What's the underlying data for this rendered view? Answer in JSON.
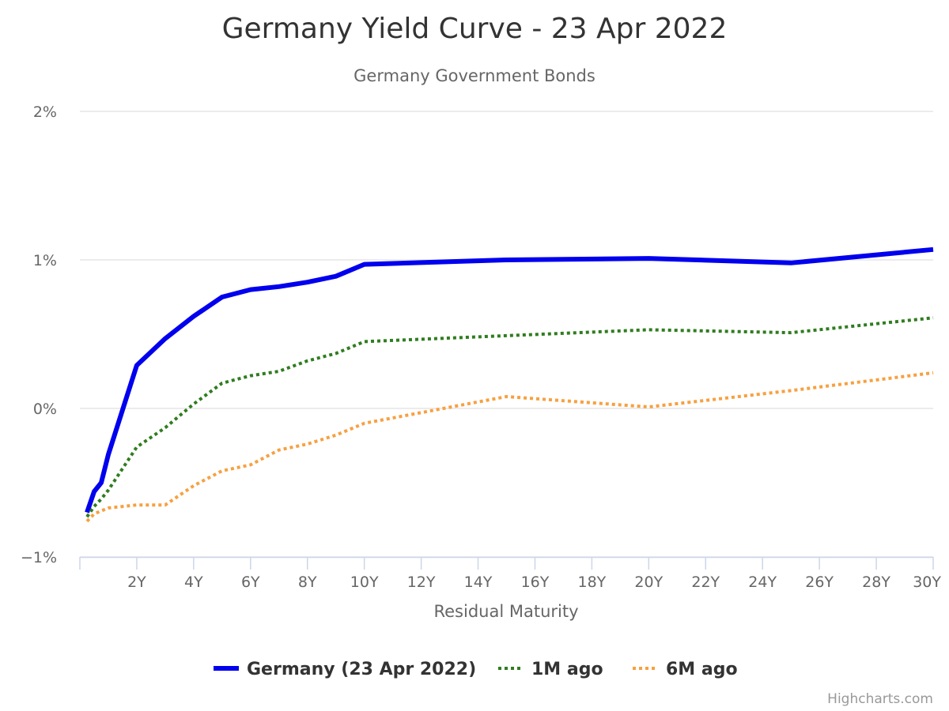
{
  "chart_data": {
    "type": "line",
    "title": "Germany Yield Curve - 23 Apr 2022",
    "subtitle": "Germany Government Bonds",
    "xlabel": "Residual Maturity",
    "ylabel": "",
    "xlim": [
      0,
      30
    ],
    "ylim": [
      -1,
      2
    ],
    "x_ticks": [
      {
        "value": 2,
        "label": "2Y"
      },
      {
        "value": 4,
        "label": "4Y"
      },
      {
        "value": 6,
        "label": "6Y"
      },
      {
        "value": 8,
        "label": "8Y"
      },
      {
        "value": 10,
        "label": "10Y"
      },
      {
        "value": 12,
        "label": "12Y"
      },
      {
        "value": 14,
        "label": "14Y"
      },
      {
        "value": 16,
        "label": "16Y"
      },
      {
        "value": 18,
        "label": "18Y"
      },
      {
        "value": 20,
        "label": "20Y"
      },
      {
        "value": 22,
        "label": "22Y"
      },
      {
        "value": 24,
        "label": "24Y"
      },
      {
        "value": 26,
        "label": "26Y"
      },
      {
        "value": 28,
        "label": "28Y"
      },
      {
        "value": 30,
        "label": "30Y"
      }
    ],
    "y_ticks": [
      {
        "value": 2,
        "label": "2%"
      },
      {
        "value": 1,
        "label": "1%"
      },
      {
        "value": 0,
        "label": "0%"
      },
      {
        "value": -1,
        "label": "−1%"
      }
    ],
    "grid": true,
    "legend_position": "bottom-center",
    "credits": "Highcharts.com",
    "series": [
      {
        "name": "Germany (23 Apr 2022)",
        "color": "#0000ee",
        "dash": "solid",
        "x": [
          0.25,
          0.5,
          0.75,
          1,
          2,
          3,
          4,
          5,
          6,
          7,
          8,
          9,
          10,
          15,
          20,
          25,
          30
        ],
        "y": [
          -0.7,
          -0.56,
          -0.5,
          -0.31,
          0.29,
          0.47,
          0.62,
          0.75,
          0.8,
          0.82,
          0.85,
          0.89,
          0.97,
          1.0,
          1.01,
          0.98,
          1.07
        ]
      },
      {
        "name": "1M ago",
        "color": "#2f7d1f",
        "dash": "dotted",
        "x": [
          0.25,
          0.5,
          0.75,
          1,
          2,
          3,
          4,
          5,
          6,
          7,
          8,
          9,
          10,
          15,
          20,
          25,
          30
        ],
        "y": [
          -0.73,
          -0.66,
          -0.61,
          -0.55,
          -0.26,
          -0.13,
          0.03,
          0.17,
          0.22,
          0.25,
          0.32,
          0.37,
          0.45,
          0.49,
          0.53,
          0.51,
          0.61
        ]
      },
      {
        "name": "6M ago",
        "color": "#f7a040",
        "dash": "dotted",
        "x": [
          0.25,
          0.5,
          0.75,
          1,
          2,
          3,
          4,
          5,
          6,
          7,
          8,
          9,
          10,
          15,
          20,
          25,
          30
        ],
        "y": [
          -0.76,
          -0.71,
          -0.69,
          -0.67,
          -0.65,
          -0.65,
          -0.52,
          -0.42,
          -0.38,
          -0.28,
          -0.24,
          -0.18,
          -0.1,
          0.08,
          0.01,
          0.12,
          0.24
        ]
      }
    ]
  }
}
